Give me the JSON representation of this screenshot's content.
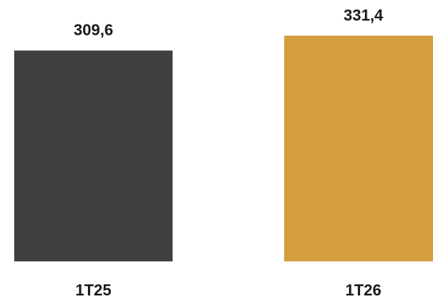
{
  "chart_data": {
    "type": "bar",
    "categories": [
      "1T25",
      "1T26"
    ],
    "values": [
      309.6,
      331.4
    ],
    "value_labels": [
      "309,6",
      "331,4"
    ],
    "colors": [
      "#404040",
      "#D49E3E"
    ],
    "title": "",
    "xlabel": "",
    "ylabel": "",
    "ylim": [
      0,
      331.4
    ],
    "grid": false,
    "legend": "none"
  }
}
